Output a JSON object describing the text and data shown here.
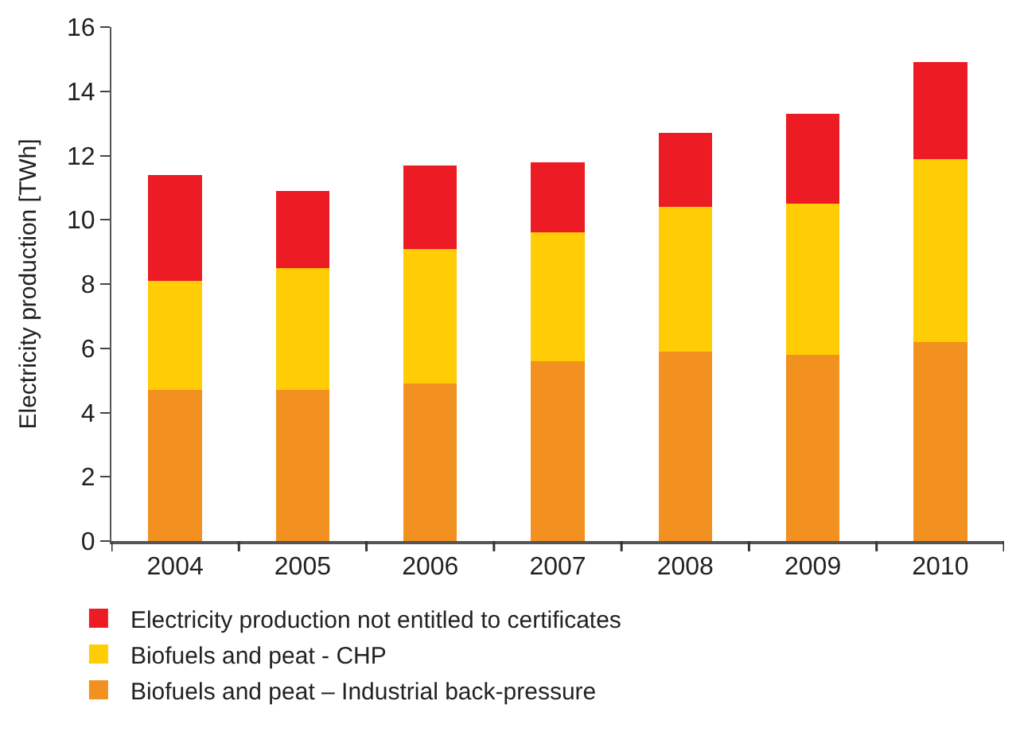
{
  "chart_data": {
    "type": "bar",
    "stacked": true,
    "ylabel": "Electricity production [TWh]",
    "categories": [
      "2004",
      "2005",
      "2006",
      "2007",
      "2008",
      "2009",
      "2010"
    ],
    "series": [
      {
        "name": "Biofuels and peat – Industrial back-pressure",
        "color": "#f29020",
        "values": [
          4.7,
          4.7,
          4.9,
          5.6,
          5.9,
          5.8,
          6.2
        ]
      },
      {
        "name": "Biofuels and peat - CHP",
        "color": "#ffcc05",
        "values": [
          3.4,
          3.8,
          4.2,
          4.0,
          4.5,
          4.7,
          5.7
        ]
      },
      {
        "name": "Electricity production not entitled to certificates",
        "color": "#ed1c24",
        "values": [
          3.3,
          2.4,
          2.6,
          2.2,
          2.3,
          2.8,
          3.0
        ]
      }
    ],
    "ylim": [
      0,
      16
    ],
    "yticks": [
      0,
      2,
      4,
      6,
      8,
      10,
      12,
      14,
      16
    ],
    "legend": "bottom"
  }
}
